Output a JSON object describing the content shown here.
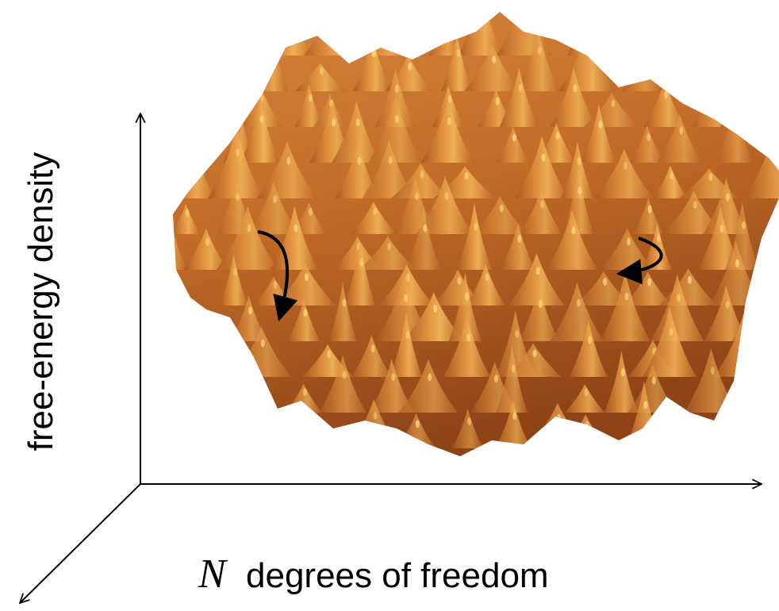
{
  "axes": {
    "vertical_label": "free-energy density",
    "horizontal_label_symbol": "N",
    "horizontal_label_text": "degrees of freedom"
  }
}
